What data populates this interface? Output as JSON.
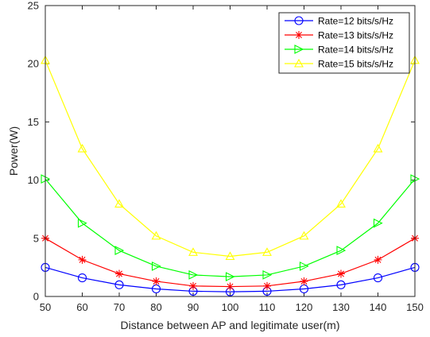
{
  "chart_data": {
    "type": "line",
    "xlabel": "Distance between AP and legitimate user(m)",
    "ylabel": "Power(W)",
    "xlim": [
      50,
      150
    ],
    "ylim": [
      0,
      25
    ],
    "xticks": [
      50,
      60,
      70,
      80,
      90,
      100,
      110,
      120,
      130,
      140,
      150
    ],
    "yticks": [
      0,
      5,
      10,
      15,
      20,
      25
    ],
    "grid": false,
    "legend_position": "top-right",
    "x": [
      50,
      60,
      70,
      80,
      90,
      100,
      110,
      120,
      130,
      140,
      150
    ],
    "series": [
      {
        "name": "Rate=12 bits/s/Hz",
        "color": "#0000ff",
        "marker": "circle",
        "values": [
          2.5,
          1.6,
          1.0,
          0.65,
          0.45,
          0.4,
          0.45,
          0.65,
          1.0,
          1.6,
          2.5
        ]
      },
      {
        "name": "Rate=13 bits/s/Hz",
        "color": "#ff0000",
        "marker": "asterisk",
        "values": [
          5.0,
          3.15,
          1.95,
          1.3,
          0.9,
          0.85,
          0.9,
          1.3,
          1.95,
          3.15,
          5.0
        ]
      },
      {
        "name": "Rate=14 bits/s/Hz",
        "color": "#00ff00",
        "marker": "triangle-right",
        "values": [
          10.1,
          6.3,
          3.95,
          2.6,
          1.85,
          1.7,
          1.85,
          2.6,
          3.95,
          6.3,
          10.1
        ]
      },
      {
        "name": "Rate=15 bits/s/Hz",
        "color": "#ffff00",
        "marker": "triangle-up",
        "values": [
          20.3,
          12.7,
          7.95,
          5.2,
          3.8,
          3.45,
          3.8,
          5.2,
          7.95,
          12.7,
          20.3
        ]
      }
    ]
  }
}
